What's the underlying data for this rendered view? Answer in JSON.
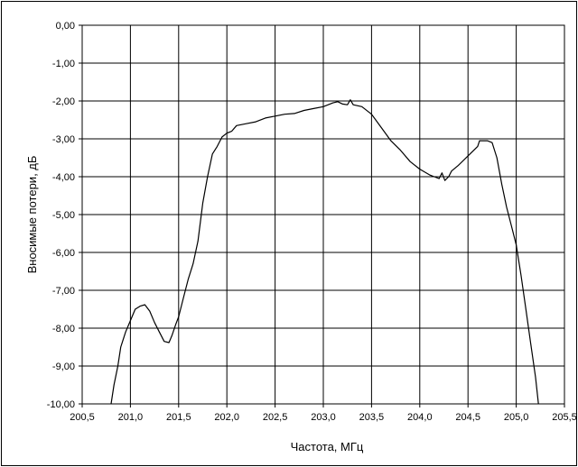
{
  "chart_data": {
    "type": "line",
    "title": "",
    "xlabel": "Частота, МГц",
    "ylabel": "Вносимые потери, дБ",
    "xlim": [
      200.5,
      205.5
    ],
    "ylim": [
      -10,
      0
    ],
    "grid": true,
    "x_ticks": [
      200.5,
      201.0,
      201.5,
      202.0,
      202.5,
      203.0,
      203.5,
      204.0,
      204.5,
      205.0,
      205.5
    ],
    "x_tick_labels": [
      "200,5",
      "201,0",
      "201,5",
      "202,0",
      "202,5",
      "203,0",
      "203,5",
      "204,0",
      "204,5",
      "205,0",
      "205,5"
    ],
    "y_ticks": [
      0,
      -1,
      -2,
      -3,
      -4,
      -5,
      -6,
      -7,
      -8,
      -9,
      -10
    ],
    "y_tick_labels": [
      "0,00",
      "-1,00",
      "-2,00",
      "-3,00",
      "-4,00",
      "-5,00",
      "-6,00",
      "-7,00",
      "-8,00",
      "-9,00",
      "-10,00"
    ],
    "series": [
      {
        "color": "#000000",
        "points": [
          [
            200.8,
            -10.0
          ],
          [
            200.83,
            -9.5
          ],
          [
            200.87,
            -9.0
          ],
          [
            200.9,
            -8.5
          ],
          [
            200.95,
            -8.1
          ],
          [
            201.0,
            -7.8
          ],
          [
            201.05,
            -7.5
          ],
          [
            201.1,
            -7.42
          ],
          [
            201.15,
            -7.38
          ],
          [
            201.2,
            -7.55
          ],
          [
            201.25,
            -7.85
          ],
          [
            201.3,
            -8.1
          ],
          [
            201.35,
            -8.35
          ],
          [
            201.4,
            -8.38
          ],
          [
            201.43,
            -8.2
          ],
          [
            201.47,
            -7.9
          ],
          [
            201.5,
            -7.7
          ],
          [
            201.55,
            -7.2
          ],
          [
            201.6,
            -6.7
          ],
          [
            201.65,
            -6.3
          ],
          [
            201.7,
            -5.7
          ],
          [
            201.75,
            -4.7
          ],
          [
            201.8,
            -4.0
          ],
          [
            201.85,
            -3.4
          ],
          [
            201.9,
            -3.2
          ],
          [
            201.95,
            -2.95
          ],
          [
            202.0,
            -2.85
          ],
          [
            202.05,
            -2.8
          ],
          [
            202.1,
            -2.65
          ],
          [
            202.2,
            -2.6
          ],
          [
            202.3,
            -2.55
          ],
          [
            202.4,
            -2.45
          ],
          [
            202.5,
            -2.4
          ],
          [
            202.6,
            -2.35
          ],
          [
            202.7,
            -2.33
          ],
          [
            202.8,
            -2.25
          ],
          [
            202.9,
            -2.2
          ],
          [
            203.0,
            -2.15
          ],
          [
            203.1,
            -2.05
          ],
          [
            203.15,
            -2.02
          ],
          [
            203.2,
            -2.08
          ],
          [
            203.25,
            -2.1
          ],
          [
            203.28,
            -1.97
          ],
          [
            203.31,
            -2.1
          ],
          [
            203.4,
            -2.15
          ],
          [
            203.5,
            -2.35
          ],
          [
            203.6,
            -2.7
          ],
          [
            203.7,
            -3.05
          ],
          [
            203.8,
            -3.3
          ],
          [
            203.9,
            -3.6
          ],
          [
            204.0,
            -3.8
          ],
          [
            204.1,
            -3.95
          ],
          [
            204.15,
            -4.0
          ],
          [
            204.2,
            -4.05
          ],
          [
            204.23,
            -3.9
          ],
          [
            204.26,
            -4.1
          ],
          [
            204.3,
            -4.0
          ],
          [
            204.33,
            -3.85
          ],
          [
            204.4,
            -3.7
          ],
          [
            204.5,
            -3.45
          ],
          [
            204.6,
            -3.2
          ],
          [
            204.62,
            -3.05
          ],
          [
            204.65,
            -3.05
          ],
          [
            204.7,
            -3.05
          ],
          [
            204.75,
            -3.1
          ],
          [
            204.8,
            -3.5
          ],
          [
            204.85,
            -4.2
          ],
          [
            204.9,
            -4.8
          ],
          [
            204.95,
            -5.3
          ],
          [
            205.0,
            -5.8
          ],
          [
            205.05,
            -6.6
          ],
          [
            205.1,
            -7.5
          ],
          [
            205.15,
            -8.4
          ],
          [
            205.2,
            -9.3
          ],
          [
            205.23,
            -10.0
          ]
        ]
      }
    ]
  }
}
